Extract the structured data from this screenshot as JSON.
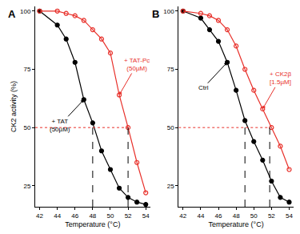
{
  "chart_data": [
    {
      "type": "line",
      "title": "A",
      "xlabel": "Temperature (°C)",
      "ylabel": "CK2 activity (%)",
      "x": [
        42,
        44,
        45,
        46,
        47,
        48,
        49,
        50,
        51,
        52,
        53,
        54
      ],
      "series": [
        {
          "name": "+ TAT (50µM)",
          "color": "#000000",
          "marker": "filled circle",
          "values": [
            100,
            94,
            88,
            78,
            62,
            52,
            40,
            32,
            24,
            20,
            18,
            17
          ]
        },
        {
          "name": "+ TAT-Pc (50µM)",
          "color": "#e8302a",
          "marker": "open circle",
          "values": [
            100,
            100,
            99,
            98,
            96,
            92,
            88,
            82,
            64,
            50,
            35,
            22
          ]
        }
      ],
      "reference_lines": {
        "x": [
          48,
          52
        ],
        "y": 50
      },
      "xlim": [
        41.5,
        54.5
      ],
      "ylim": [
        16,
        102
      ],
      "xticks": [
        42,
        44,
        46,
        48,
        50,
        52,
        54
      ],
      "yticks": [
        25,
        50,
        75,
        100
      ],
      "grid": false
    },
    {
      "type": "line",
      "title": "B",
      "xlabel": "Temperature (°C)",
      "x": [
        42,
        44,
        45,
        46,
        47,
        48,
        49,
        50,
        51,
        52,
        53,
        54
      ],
      "series": [
        {
          "name": "Ctrl",
          "color": "#000000",
          "marker": "filled circle",
          "values": [
            100,
            97,
            92,
            87,
            78,
            66,
            53,
            44,
            36,
            27,
            20,
            18
          ]
        },
        {
          "name": "+ CK2β [1.5µM]",
          "color": "#e8302a",
          "marker": "open circle",
          "values": [
            100,
            99,
            98,
            96,
            92,
            85,
            75,
            66,
            58,
            50,
            42,
            32
          ]
        }
      ],
      "reference_lines": {
        "x": [
          49,
          51.8
        ],
        "y": 50
      },
      "xlim": [
        41.5,
        54.5
      ],
      "ylim": [
        16,
        102
      ],
      "xticks": [
        42,
        44,
        46,
        48,
        50,
        52,
        54
      ],
      "yticks": [
        25,
        50,
        75,
        100
      ],
      "grid": false
    }
  ]
}
